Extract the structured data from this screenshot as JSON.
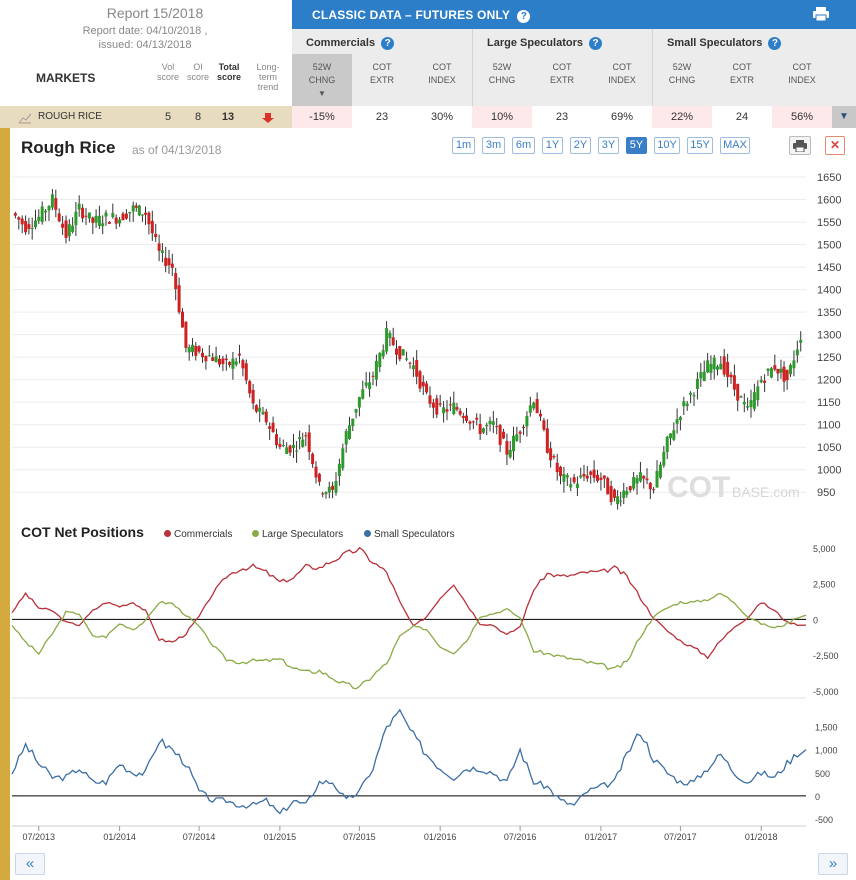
{
  "report": {
    "title": "Report 15/2018",
    "report_date": "Report date: 04/10/2018 ,",
    "issued": "issued: 04/13/2018"
  },
  "markets_label": "MARKETS",
  "score_headers": {
    "vol": [
      "Vol",
      "score"
    ],
    "oi": [
      "OI",
      "score"
    ],
    "total": [
      "Total",
      "score"
    ],
    "trend": [
      "Long-",
      "term",
      "trend"
    ]
  },
  "classic_title": "CLASSIC DATA – FUTURES ONLY",
  "groups": {
    "commercials": "Commercials",
    "large": "Large Speculators",
    "small": "Small Speculators"
  },
  "sub_headers": {
    "chng": [
      "52W",
      "CHNG"
    ],
    "extr": [
      "COT",
      "EXTR"
    ],
    "index": [
      "COT",
      "INDEX"
    ]
  },
  "row": {
    "market": "ROUGH RICE",
    "vol_score": "5",
    "oi_score": "8",
    "total_score": "13",
    "comm_chng": "-15%",
    "comm_extr": "23",
    "comm_index": "30%",
    "large_chng": "10%",
    "large_extr": "23",
    "large_index": "69%",
    "small_chng": "22%",
    "small_extr": "24",
    "small_index": "56%"
  },
  "chart_header": {
    "title": "Rough Rice",
    "as_of": "as of 04/13/2018",
    "ranges": [
      "1m",
      "3m",
      "6m",
      "1Y",
      "2Y",
      "3Y",
      "5Y",
      "10Y",
      "15Y",
      "MAX"
    ],
    "active_range": "5Y"
  },
  "watermark": {
    "main": "COT",
    "sub": "BASE.com"
  },
  "cot_title": "COT Net Positions",
  "colors": {
    "commercials": "#b8323a",
    "large": "#8aaa45",
    "small": "#3b6ea5",
    "up_candle": "#2e9a2e",
    "down_candle": "#cc2222",
    "accent": "#d4a93e",
    "blue_bar": "#2d7ec9"
  },
  "icons": {
    "print": "printer-icon",
    "close": "close-icon",
    "help": "question-icon",
    "trend": "down-arrow-icon",
    "prev": "double-left-icon",
    "next": "double-right-icon"
  },
  "chart_data": [
    {
      "type": "line",
      "name": "price",
      "title": "Rough Rice",
      "y_ticks": [
        950,
        1000,
        1050,
        1100,
        1150,
        1200,
        1250,
        1300,
        1350,
        1400,
        1450,
        1500,
        1550,
        1600,
        1650
      ],
      "ylim": [
        915,
        1670
      ],
      "x": [
        "2013-05-01",
        "2013-06-01",
        "2013-07-01",
        "2013-08-01",
        "2013-09-01",
        "2013-10-01",
        "2013-11-01",
        "2013-12-01",
        "2014-01-01",
        "2014-02-01",
        "2014-03-01",
        "2014-04-01",
        "2014-05-01",
        "2014-06-01",
        "2014-07-01",
        "2014-08-01",
        "2014-09-01",
        "2014-10-01",
        "2014-11-01",
        "2014-12-01",
        "2015-01-01",
        "2015-02-01",
        "2015-03-01",
        "2015-04-01",
        "2015-05-01",
        "2015-06-01",
        "2015-07-01",
        "2015-08-01",
        "2015-09-01",
        "2015-10-01",
        "2015-11-01",
        "2015-12-01",
        "2016-01-01",
        "2016-02-01",
        "2016-03-01",
        "2016-04-01",
        "2016-05-01",
        "2016-06-01",
        "2016-07-01",
        "2016-08-01",
        "2016-09-01",
        "2016-10-01",
        "2016-11-01",
        "2016-12-01",
        "2017-01-01",
        "2017-02-01",
        "2017-03-01",
        "2017-04-01",
        "2017-05-01",
        "2017-06-01",
        "2017-07-01",
        "2017-08-01",
        "2017-09-01",
        "2017-10-01",
        "2017-11-01",
        "2017-12-01",
        "2018-01-01",
        "2018-02-01",
        "2018-03-01",
        "2018-04-01"
      ],
      "close": [
        1570,
        1540,
        1560,
        1600,
        1520,
        1580,
        1550,
        1560,
        1560,
        1580,
        1570,
        1480,
        1450,
        1270,
        1260,
        1250,
        1230,
        1250,
        1140,
        1110,
        1050,
        1050,
        1080,
        960,
        950,
        1080,
        1160,
        1210,
        1300,
        1260,
        1230,
        1160,
        1130,
        1140,
        1120,
        1090,
        1100,
        1040,
        1090,
        1160,
        1050,
        980,
        970,
        990,
        980,
        930,
        960,
        980,
        960,
        1060,
        1130,
        1180,
        1230,
        1240,
        1180,
        1130,
        1200,
        1230,
        1200,
        1300
      ],
      "xlabel": "",
      "ylabel": ""
    },
    {
      "type": "line",
      "title": "COT Net Positions",
      "y_ticks": [
        -5000,
        -2500,
        0,
        2500,
        5000
      ],
      "ylim": [
        -5500,
        5200
      ],
      "x": [
        "2013-05",
        "2013-06",
        "2013-07",
        "2013-08",
        "2013-09",
        "2013-10",
        "2013-11",
        "2013-12",
        "2014-01",
        "2014-02",
        "2014-03",
        "2014-04",
        "2014-05",
        "2014-06",
        "2014-07",
        "2014-08",
        "2014-09",
        "2014-10",
        "2014-11",
        "2014-12",
        "2015-01",
        "2015-02",
        "2015-03",
        "2015-04",
        "2015-05",
        "2015-06",
        "2015-07",
        "2015-08",
        "2015-09",
        "2015-10",
        "2015-11",
        "2015-12",
        "2016-01",
        "2016-02",
        "2016-03",
        "2016-04",
        "2016-05",
        "2016-06",
        "2016-07",
        "2016-08",
        "2016-09",
        "2016-10",
        "2016-11",
        "2016-12",
        "2017-01",
        "2017-02",
        "2017-03",
        "2017-04",
        "2017-05",
        "2017-06",
        "2017-07",
        "2017-08",
        "2017-09",
        "2017-10",
        "2017-11",
        "2017-12",
        "2018-01",
        "2018-02",
        "2018-03",
        "2018-04"
      ],
      "series": [
        {
          "name": "Commercials",
          "values": [
            500,
            1800,
            800,
            600,
            -200,
            -400,
            600,
            1200,
            900,
            1200,
            600,
            -1400,
            -1600,
            -1000,
            200,
            1800,
            3000,
            3500,
            3700,
            3300,
            2600,
            2900,
            3700,
            3600,
            4100,
            4600,
            4900,
            4000,
            3300,
            1200,
            -500,
            200,
            1500,
            2500,
            1100,
            -300,
            -400,
            -1100,
            -500,
            2100,
            3200,
            3000,
            3100,
            3300,
            3300,
            3600,
            3000,
            1500,
            100,
            -800,
            -1500,
            -2000,
            -2600,
            -1500,
            -500,
            100,
            1200,
            600,
            -200,
            -400
          ]
        },
        {
          "name": "Large Speculators",
          "values": [
            -400,
            -1600,
            -2400,
            -1000,
            500,
            400,
            -1200,
            -1200,
            -300,
            -700,
            -100,
            1200,
            1100,
            300,
            -500,
            -1800,
            -2800,
            -3000,
            -2900,
            -2900,
            -2800,
            -3400,
            -3700,
            -3600,
            -4100,
            -4600,
            -4800,
            -3900,
            -3100,
            -1200,
            -500,
            -700,
            -1900,
            -2300,
            -1500,
            200,
            400,
            700,
            100,
            -2200,
            -2400,
            -2600,
            -2800,
            -3000,
            -3200,
            -3500,
            -3000,
            -1200,
            200,
            800,
            1200,
            1200,
            1400,
            1800,
            1200,
            200,
            -300,
            -600,
            -300,
            300
          ]
        },
        {
          "name": "Small Speculators",
          "values": [
            500,
            1100,
            700,
            400,
            400,
            600,
            300,
            300,
            700,
            500,
            500,
            1200,
            1000,
            700,
            100,
            -100,
            -100,
            -200,
            -200,
            -100,
            -400,
            -100,
            -200,
            300,
            300,
            -100,
            100,
            600,
            1500,
            1800,
            1300,
            900,
            600,
            400,
            600,
            600,
            500,
            300,
            1000,
            300,
            200,
            -100,
            -200,
            100,
            200,
            300,
            900,
            1400,
            800,
            500,
            300,
            300,
            600,
            900,
            500,
            300,
            500,
            400,
            700,
            1000
          ]
        }
      ],
      "small_y_ticks": [
        -500,
        0,
        500,
        1000,
        1500
      ],
      "small_ylim": [
        -650,
        1900
      ]
    }
  ],
  "x_axis_labels": [
    "07/2013",
    "01/2014",
    "07/2014",
    "01/2015",
    "07/2015",
    "01/2016",
    "07/2016",
    "01/2017",
    "07/2017",
    "01/2018"
  ],
  "x_axis_dates": [
    "2013-07-01",
    "2014-01-01",
    "2014-07-01",
    "2015-01-01",
    "2015-07-01",
    "2016-01-01",
    "2016-07-01",
    "2017-01-01",
    "2017-07-01",
    "2018-01-01"
  ],
  "nav": {
    "prev": "«",
    "next": "»"
  }
}
